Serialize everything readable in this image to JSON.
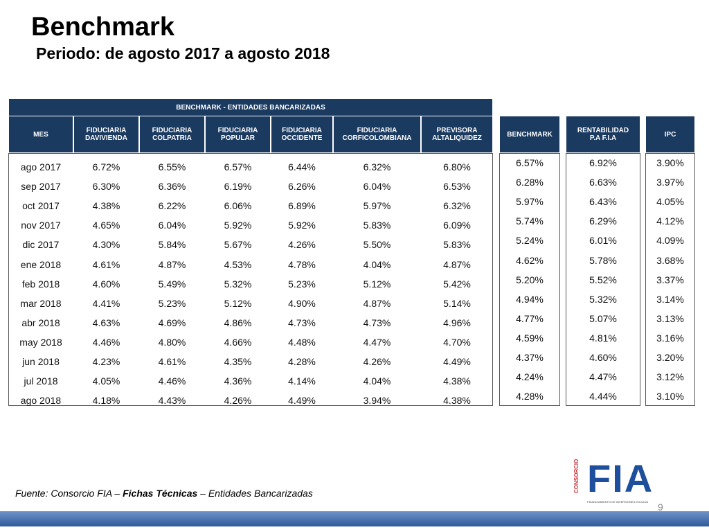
{
  "header": {
    "title": "Benchmark",
    "subtitle": "Periodo: de agosto 2017 a agosto 2018"
  },
  "main_table": {
    "title": "BENCHMARK - ENTIDADES BANCARIZADAS",
    "columns": [
      "MES",
      "FIDUCIARIA\nDAVIVIENDA",
      "FIDUCIARIA\nCOLPATRIA",
      "FIDUCIARIA\nPOPULAR",
      "FIDUCIARIA\nOCCIDENTE",
      "FIDUCIARIA\nCORFICOLOMBIANA",
      "PREVISORA\nALTALIQUIDEZ"
    ],
    "rows": [
      [
        "ago 2017",
        "6.72%",
        "6.55%",
        "6.57%",
        "6.44%",
        "6.32%",
        "6.80%"
      ],
      [
        "sep 2017",
        "6.30%",
        "6.36%",
        "6.19%",
        "6.26%",
        "6.04%",
        "6.53%"
      ],
      [
        "oct 2017",
        "4.38%",
        "6.22%",
        "6.06%",
        "6.89%",
        "5.97%",
        "6.32%"
      ],
      [
        "nov 2017",
        "4.65%",
        "6.04%",
        "5.92%",
        "5.92%",
        "5.83%",
        "6.09%"
      ],
      [
        "dic 2017",
        "4.30%",
        "5.84%",
        "5.67%",
        "4.26%",
        "5.50%",
        "5.83%"
      ],
      [
        "ene 2018",
        "4.61%",
        "4.87%",
        "4.53%",
        "4.78%",
        "4.04%",
        "4.87%"
      ],
      [
        "feb 2018",
        "4.60%",
        "5.49%",
        "5.32%",
        "5.23%",
        "5.12%",
        "5.42%"
      ],
      [
        "mar 2018",
        "4.41%",
        "5.23%",
        "5.12%",
        "4.90%",
        "4.87%",
        "5.14%"
      ],
      [
        "abr 2018",
        "4.63%",
        "4.69%",
        "4.86%",
        "4.73%",
        "4.73%",
        "4.96%"
      ],
      [
        "may 2018",
        "4.46%",
        "4.80%",
        "4.66%",
        "4.48%",
        "4.47%",
        "4.70%"
      ],
      [
        "jun 2018",
        "4.23%",
        "4.61%",
        "4.35%",
        "4.28%",
        "4.26%",
        "4.49%"
      ],
      [
        "jul 2018",
        "4.05%",
        "4.46%",
        "4.36%",
        "4.14%",
        "4.04%",
        "4.38%"
      ],
      [
        "ago 2018",
        "4.18%",
        "4.43%",
        "4.26%",
        "4.49%",
        "3.94%",
        "4.38%"
      ]
    ]
  },
  "side_tables": [
    {
      "column": "BENCHMARK",
      "rows": [
        "6.57%",
        "6.28%",
        "5.97%",
        "5.74%",
        "5.24%",
        "4.62%",
        "5.20%",
        "4.94%",
        "4.77%",
        "4.59%",
        "4.37%",
        "4.24%",
        "4.28%"
      ]
    },
    {
      "column": "RENTABILIDAD\nP.A F.I.A",
      "rows": [
        "6.92%",
        "6.63%",
        "6.43%",
        "6.29%",
        "6.01%",
        "5.78%",
        "5.52%",
        "5.32%",
        "5.07%",
        "4.81%",
        "4.60%",
        "4.47%",
        "4.44%"
      ]
    },
    {
      "column": "IPC",
      "rows": [
        "3.90%",
        "3.97%",
        "4.05%",
        "4.12%",
        "4.09%",
        "3.68%",
        "3.37%",
        "3.14%",
        "3.13%",
        "3.16%",
        "3.20%",
        "3.12%",
        "3.10%"
      ]
    }
  ],
  "footer": {
    "source": [
      "Fuente: Consorcio FIA – ",
      "Fichas Técnicas",
      " – Entidades Bancarizadas"
    ],
    "page": "9"
  },
  "logo": {
    "name": "FIA",
    "group": "CONSORCIO",
    "tagline": "FINANCIAMIENTO DE INVERSIONES EN AGUA"
  }
}
